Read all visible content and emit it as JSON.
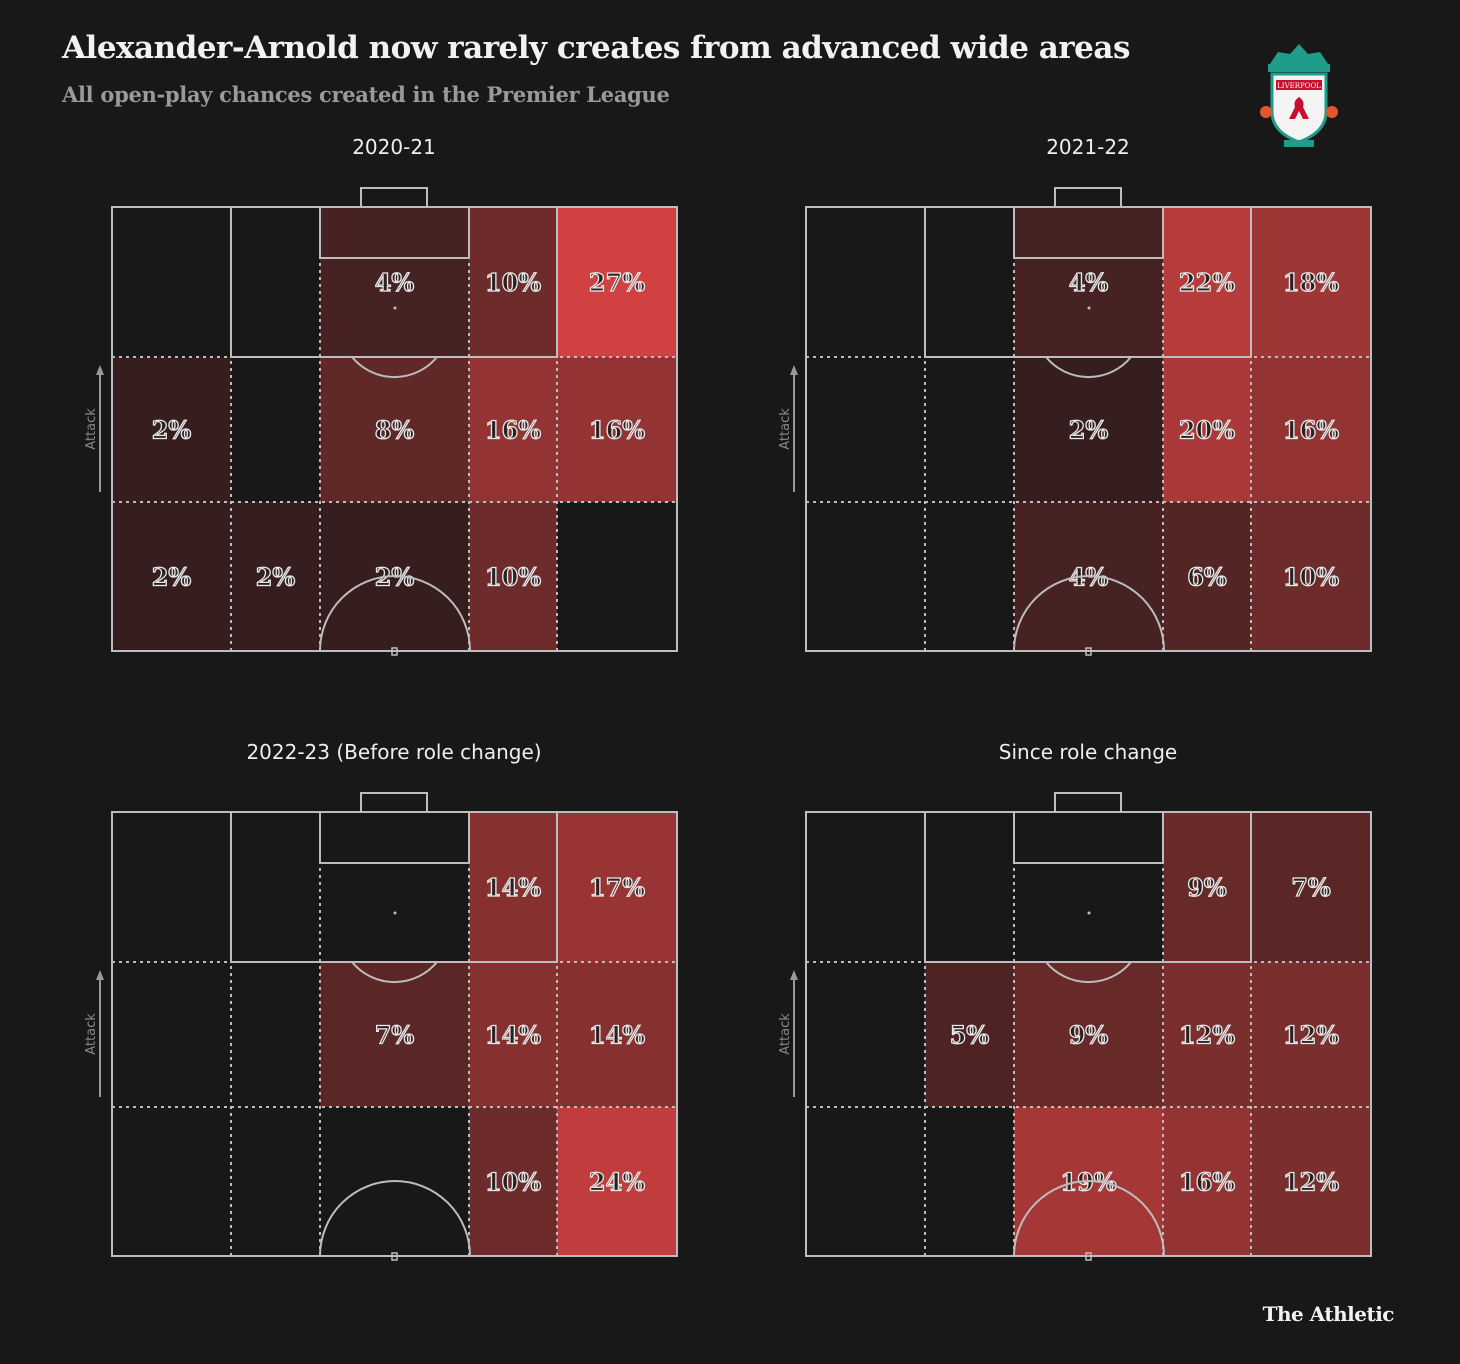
{
  "header": {
    "title": "Alexander-Arnold now rarely creates from advanced wide areas",
    "subtitle": "All open-play chances created in the Premier League",
    "logo_text": "LIVERPOOL FOOTBALL CLUB"
  },
  "footer": {
    "brand": "The Athletic"
  },
  "colors": {
    "background": "#181818",
    "empty_cell": "#181818",
    "low": "#231a1a",
    "high": "#d24141",
    "lines": "#bdbdbd"
  },
  "chart_data": [
    {
      "type": "heatmap",
      "title": "2020-21",
      "direction_label": "Attack",
      "values": [
        [
          null,
          null,
          4,
          10,
          27
        ],
        [
          2,
          null,
          8,
          16,
          16
        ],
        [
          2,
          2,
          2,
          10,
          null
        ]
      ]
    },
    {
      "type": "heatmap",
      "title": "2021-22",
      "direction_label": "Attack",
      "values": [
        [
          null,
          null,
          4,
          22,
          18
        ],
        [
          null,
          null,
          2,
          20,
          16
        ],
        [
          null,
          null,
          4,
          6,
          10
        ]
      ]
    },
    {
      "type": "heatmap",
      "title": "2022-23 (Before role change)",
      "direction_label": "Attack",
      "values": [
        [
          null,
          null,
          null,
          14,
          17
        ],
        [
          null,
          null,
          7,
          14,
          14
        ],
        [
          null,
          null,
          null,
          10,
          24
        ]
      ]
    },
    {
      "type": "heatmap",
      "title": "Since role change",
      "direction_label": "Attack",
      "values": [
        [
          null,
          null,
          null,
          9,
          7
        ],
        [
          null,
          5,
          9,
          12,
          12
        ],
        [
          null,
          null,
          19,
          16,
          12
        ]
      ]
    }
  ]
}
